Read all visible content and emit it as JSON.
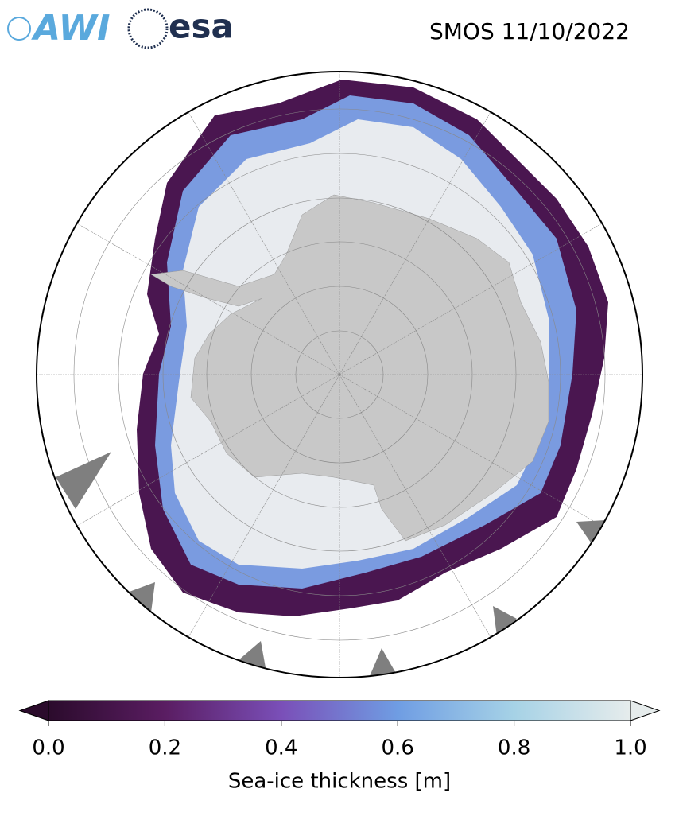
{
  "header": {
    "logos": [
      "AWI",
      "esa"
    ],
    "title": "SMOS 11/10/2022"
  },
  "colorbar": {
    "label": "Sea-ice thickness [m]",
    "lim": [
      0,
      1
    ],
    "ticks": [
      {
        "value": 0,
        "label": "0.0"
      },
      {
        "value": 0.2,
        "label": "0.2"
      },
      {
        "value": 0.4,
        "label": "0.4"
      },
      {
        "value": 0.6,
        "label": "0.6"
      },
      {
        "value": 0.8,
        "label": "0.8"
      },
      {
        "value": 1,
        "label": "1.0"
      }
    ],
    "colors": [
      "#2b0b2c",
      "#5a1d62",
      "#7a4fb8",
      "#6f9de3",
      "#a6d2e6",
      "#e6ecec"
    ]
  }
}
